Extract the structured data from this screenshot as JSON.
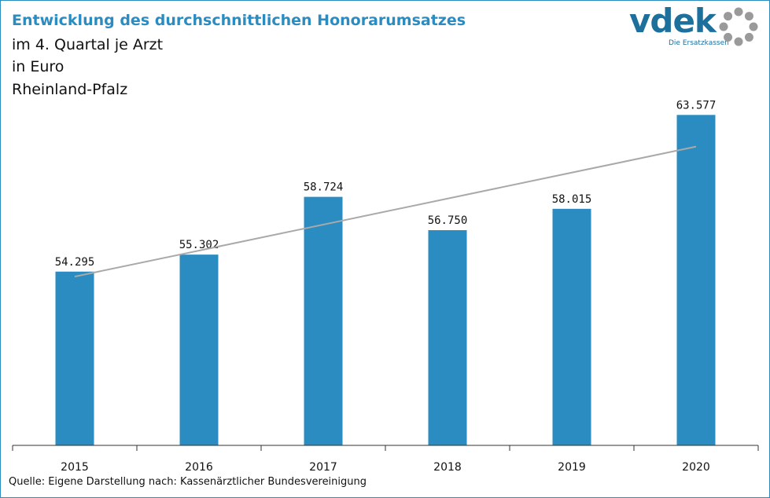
{
  "header": {
    "title": "Entwicklung des durchschnittlichen Honorarumsatzes",
    "subtitle_lines": [
      "im 4. Quartal je Arzt",
      "in Euro",
      "Rheinland-Pfalz"
    ]
  },
  "logo": {
    "text": "vdek",
    "tagline": "Die Ersatzkassen",
    "brand_color": "#1d6f9c",
    "ring_color": "#9a9a9a"
  },
  "source": "Quelle: Eigene Darstellung nach: Kassenärztlicher Bundesvereinigung",
  "colors": {
    "bar": "#2a8cc0",
    "trend": "#a9a9a9",
    "axis": "#333333",
    "frame": "#2a8cc0",
    "title": "#2a8cc0"
  },
  "chart_data": {
    "type": "bar",
    "categories": [
      "2015",
      "2016",
      "2017",
      "2018",
      "2019",
      "2020"
    ],
    "values": [
      54295,
      55302,
      58724,
      56750,
      58015,
      63577
    ],
    "data_labels": [
      "54.295",
      "55.302",
      "58.724",
      "56.750",
      "58.015",
      "63.577"
    ],
    "ylim": [
      44000,
      65500
    ],
    "trendline": {
      "type": "linear",
      "start": 54000,
      "end": 61700
    },
    "grid": false,
    "legend": "none"
  }
}
